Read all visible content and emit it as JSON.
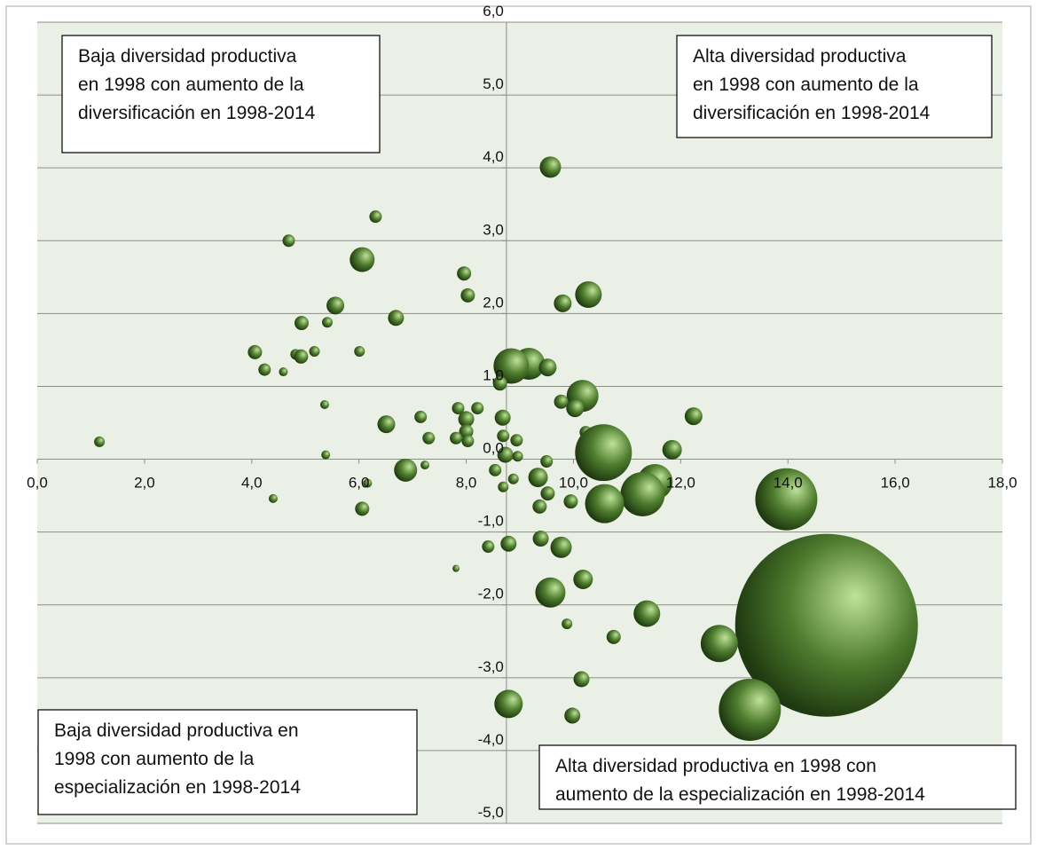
{
  "chart_data": {
    "type": "bubble",
    "xlim": [
      0,
      18
    ],
    "ylim": [
      -5,
      6
    ],
    "xticks": [
      {
        "value": 0,
        "label": "0,0"
      },
      {
        "value": 2,
        "label": "2,0"
      },
      {
        "value": 4,
        "label": "4,0"
      },
      {
        "value": 6,
        "label": "6,0"
      },
      {
        "value": 8,
        "label": "8,0"
      },
      {
        "value": 10,
        "label": "10,0"
      },
      {
        "value": 12,
        "label": "12,0"
      },
      {
        "value": 14,
        "label": "14,0"
      },
      {
        "value": 16,
        "label": "16,0"
      },
      {
        "value": 18,
        "label": "18,0"
      }
    ],
    "yticks": [
      {
        "value": -5,
        "label": "-5,0"
      },
      {
        "value": -4,
        "label": "-4,0"
      },
      {
        "value": -3,
        "label": "-3,0"
      },
      {
        "value": -2,
        "label": "-2,0"
      },
      {
        "value": -1,
        "label": "-1,0"
      },
      {
        "value": 0,
        "label": "0,0"
      },
      {
        "value": 1,
        "label": "1,0"
      },
      {
        "value": 2,
        "label": "2,0"
      },
      {
        "value": 3,
        "label": "3,0"
      },
      {
        "value": 4,
        "label": "4,0"
      },
      {
        "value": 5,
        "label": "5,0"
      },
      {
        "value": 6,
        "label": "6,0"
      }
    ],
    "y_axis_at_x": 8.75,
    "grid": true,
    "color": "#4f7d2f",
    "series": [
      {
        "x": [
          9.57,
          6.31,
          4.69,
          6.06,
          7.96,
          8.03,
          10.28,
          9.8,
          5.56,
          6.69,
          4.93,
          5.41,
          4.06,
          6.01,
          5.17,
          4.82,
          4.92,
          4.24,
          4.59,
          9.17,
          8.84,
          9.52,
          8.63,
          10.17,
          9.77,
          10.03,
          5.36,
          6.51,
          7.15,
          7.85,
          8.21,
          8.0,
          8.0,
          8.68,
          12.24,
          7.3,
          7.81,
          8.03,
          8.69,
          8.94,
          10.23,
          10.56,
          11.84,
          8.73,
          8.96,
          5.38,
          9.5,
          6.87,
          7.23,
          8.54,
          8.88,
          9.34,
          9.52,
          8.69,
          11.52,
          11.29,
          10.58,
          13.97,
          9.95,
          9.37,
          6.16,
          6.06,
          4.4,
          9.39,
          8.79,
          8.41,
          9.77,
          7.81,
          10.18,
          9.57,
          11.37,
          9.88,
          10.75,
          14.72,
          12.72,
          10.15,
          8.79,
          13.29,
          9.98,
          1.16
        ],
        "values": [
          4.01,
          3.33,
          3.0,
          2.74,
          2.55,
          2.25,
          2.26,
          2.14,
          2.11,
          1.94,
          1.87,
          1.88,
          1.47,
          1.48,
          1.48,
          1.44,
          1.41,
          1.23,
          1.2,
          1.31,
          1.28,
          1.26,
          1.04,
          0.87,
          0.79,
          0.7,
          0.75,
          0.48,
          0.58,
          0.7,
          0.7,
          0.55,
          0.38,
          0.57,
          0.59,
          0.29,
          0.29,
          0.25,
          0.32,
          0.26,
          0.37,
          0.09,
          0.13,
          0.06,
          0.04,
          0.06,
          -0.03,
          -0.15,
          -0.08,
          -0.15,
          -0.27,
          -0.25,
          -0.47,
          -0.38,
          -0.31,
          -0.48,
          -0.61,
          -0.55,
          -0.58,
          -0.65,
          -0.33,
          -0.68,
          -0.54,
          -1.09,
          -1.16,
          -1.2,
          -1.21,
          -1.5,
          -1.65,
          -1.83,
          -2.12,
          -2.26,
          -2.44,
          -2.28,
          -2.53,
          -3.02,
          -3.36,
          -3.44,
          -3.52,
          0.24
        ],
        "sizes": [
          12,
          7,
          7,
          14,
          8,
          8,
          15,
          10,
          10,
          9,
          8,
          6,
          8,
          6,
          6,
          6,
          8,
          7,
          5,
          18,
          20,
          10,
          8,
          18,
          8,
          10,
          5,
          10,
          7,
          7,
          7,
          9,
          8,
          9,
          10,
          7,
          7,
          7,
          7,
          7,
          7,
          32,
          11,
          9,
          6,
          5,
          7,
          13,
          5,
          7,
          6,
          11,
          8,
          6,
          20,
          25,
          22,
          35,
          8,
          8,
          5,
          8,
          5,
          9,
          9,
          7,
          12,
          4,
          11,
          17,
          15,
          6,
          8,
          103,
          21,
          9,
          16,
          35,
          9,
          6
        ]
      }
    ],
    "annotations": [
      {
        "lines": [
          "Baja diversidad productiva",
          "en 1998 con aumento de la",
          "diversificación en 1998-2014"
        ]
      },
      {
        "lines": [
          "Alta diversidad productiva",
          "en 1998 con aumento de la",
          "diversificación en 1998-2014"
        ]
      },
      {
        "lines": [
          "Baja diversidad productiva en",
          "1998 con aumento de la",
          "especialización en 1998-2014"
        ]
      },
      {
        "lines": [
          "Alta diversidad productiva  en 1998 con",
          "aumento de la especialización en 1998-2014"
        ]
      }
    ]
  }
}
